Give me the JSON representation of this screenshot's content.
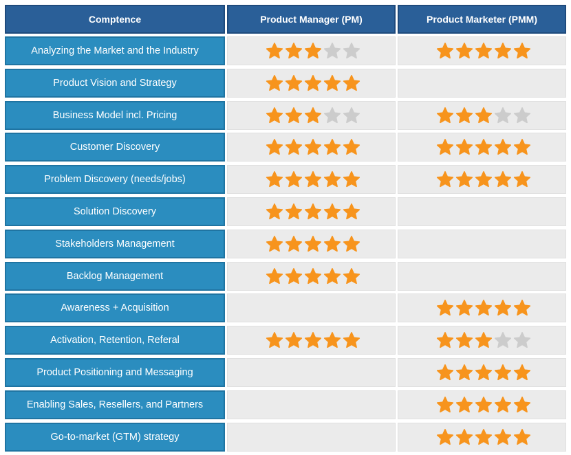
{
  "headers": {
    "competence": "Comptence",
    "pm": "Product Manager (PM)",
    "pmm": "Product Marketer (PMM)"
  },
  "colors": {
    "star_filled": "#f7941d",
    "star_empty": "#cccccc",
    "header_bg": "#2a5f98",
    "competence_bg": "#2b8dbf",
    "rating_bg": "#ebebeb"
  },
  "max_stars": 5,
  "rows": [
    {
      "label": "Analyzing the Market and the Industry",
      "pm": 3,
      "pmm": 5
    },
    {
      "label": "Product Vision and Strategy",
      "pm": 5,
      "pmm": 0
    },
    {
      "label": "Business Model incl. Pricing",
      "pm": 3,
      "pmm": 3
    },
    {
      "label": "Customer Discovery",
      "pm": 5,
      "pmm": 5
    },
    {
      "label": "Problem Discovery (needs/jobs)",
      "pm": 5,
      "pmm": 5
    },
    {
      "label": "Solution Discovery",
      "pm": 5,
      "pmm": 0
    },
    {
      "label": "Stakeholders Management",
      "pm": 5,
      "pmm": 0
    },
    {
      "label": "Backlog Management",
      "pm": 5,
      "pmm": 0
    },
    {
      "label": "Awareness + Acquisition",
      "pm": 0,
      "pmm": 5
    },
    {
      "label": "Activation, Retention, Referal",
      "pm": 5,
      "pmm": 3
    },
    {
      "label": "Product Positioning and Messaging",
      "pm": 0,
      "pmm": 5
    },
    {
      "label": "Enabling Sales, Resellers, and Partners",
      "pm": 0,
      "pmm": 5
    },
    {
      "label": "Go-to-market (GTM) strategy",
      "pm": 0,
      "pmm": 5
    }
  ]
}
